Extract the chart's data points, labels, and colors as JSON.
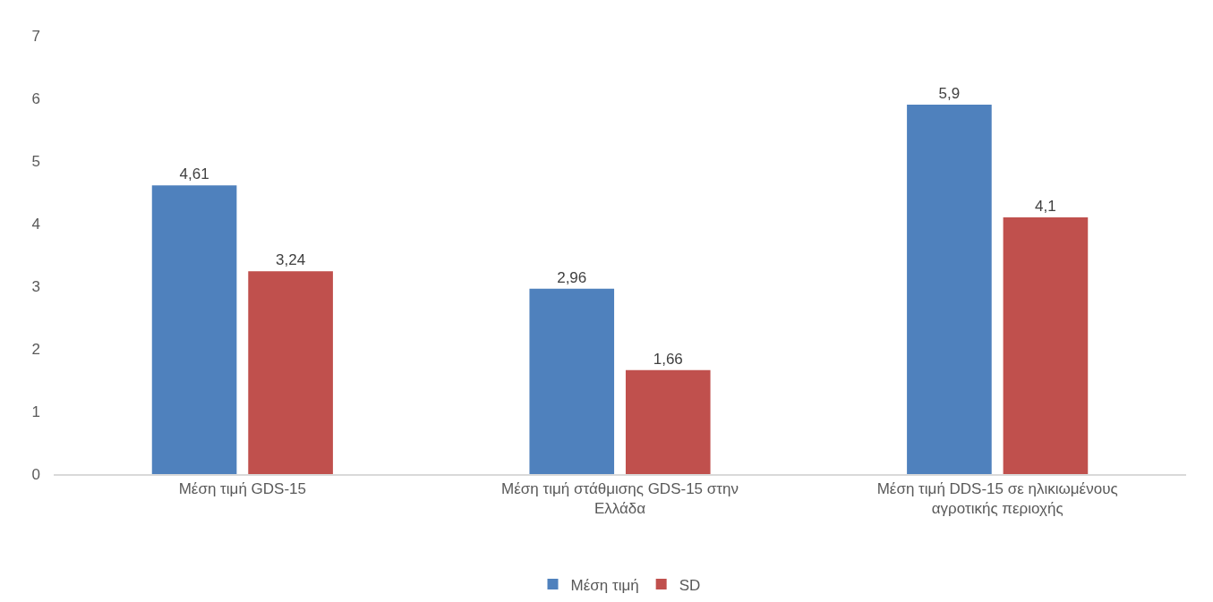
{
  "chart_data": {
    "type": "bar",
    "categories": [
      "Μέση τιμή GDS-15",
      "Μέση τιμή στάθμισης GDS-15 στην Ελλάδα",
      "Μέση τιμή DDS-15 σε ηλικιωμένους αγροτικής περιοχής"
    ],
    "series": [
      {
        "name": "Μέση τιμή",
        "color": "#4f81bd",
        "values": [
          4.61,
          2.96,
          5.9
        ],
        "value_labels": [
          "4,61",
          "2,96",
          "5,9"
        ]
      },
      {
        "name": "SD",
        "color": "#c0504d",
        "values": [
          3.24,
          1.66,
          4.1
        ],
        "value_labels": [
          "3,24",
          "1,66",
          "4,1"
        ]
      }
    ],
    "ylim": [
      0,
      7
    ],
    "yticks": [
      0,
      1,
      2,
      3,
      4,
      5,
      6,
      7
    ],
    "legend": "bottom"
  }
}
